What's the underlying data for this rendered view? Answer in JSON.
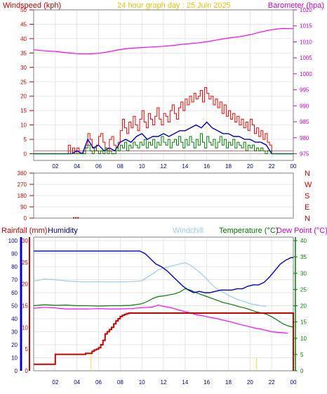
{
  "chart_data": [
    {
      "type": "line",
      "labels": {
        "windspeed": "Windspeed (kph)",
        "title": "24 hour graph day : 25 Juin 2025",
        "barometer": "Barometer (hpa)"
      },
      "colors": {
        "gust": "#ff0000",
        "avg": "#0000cc",
        "lull": "#008000",
        "baro": "#ff00ff",
        "frame": "#808080"
      },
      "x_ticks": [
        "02",
        "04",
        "06",
        "08",
        "10",
        "12",
        "14",
        "16",
        "18",
        "20",
        "22",
        "00"
      ],
      "x_range_hours": [
        0,
        24
      ],
      "wind_axis": {
        "range": [
          0,
          50
        ],
        "ticks": [
          "0",
          "5",
          "10",
          "15",
          "20",
          "25",
          "30",
          "35",
          "40",
          "45",
          "50"
        ]
      },
      "baro_axis": {
        "range": [
          975,
          1020
        ],
        "ticks": [
          "975",
          "980",
          "985",
          "990",
          "995",
          "1000",
          "1005",
          "1010",
          "1015",
          "1020"
        ]
      },
      "series": [
        {
          "key": "gust",
          "axis": "wind",
          "step": true,
          "x": [
            0,
            3.2,
            3.4,
            3.6,
            3.8,
            4.0,
            4.2,
            4.4,
            4.6,
            4.8,
            5.0,
            5.2,
            5.4,
            5.6,
            5.8,
            6.0,
            6.2,
            6.4,
            6.6,
            6.8,
            7.0,
            7.2,
            7.4,
            7.6,
            7.8,
            8.0,
            8.2,
            8.4,
            8.6,
            8.8,
            9.0,
            9.2,
            9.4,
            9.6,
            9.8,
            10.0,
            10.2,
            10.4,
            10.6,
            10.8,
            11.0,
            11.2,
            11.4,
            11.6,
            11.8,
            12.0,
            12.2,
            12.4,
            12.6,
            12.8,
            13.0,
            13.2,
            13.4,
            13.6,
            13.8,
            14.0,
            14.2,
            14.4,
            14.6,
            14.8,
            15.0,
            15.2,
            15.4,
            15.6,
            15.8,
            16.0,
            16.2,
            16.4,
            16.6,
            16.8,
            17.0,
            17.2,
            17.4,
            17.6,
            17.8,
            18.0,
            18.2,
            18.4,
            18.6,
            18.8,
            19.0,
            19.2,
            19.4,
            19.6,
            19.8,
            20.0,
            20.2,
            20.4,
            20.6,
            20.8,
            21.0,
            21.2,
            21.4,
            21.6,
            21.8,
            22.0,
            24.0
          ],
          "y": [
            0,
            3,
            0,
            2,
            0,
            2,
            0,
            0,
            1,
            3,
            7,
            5,
            2,
            1,
            3,
            6,
            7,
            4,
            2,
            1,
            5,
            6,
            3,
            2,
            4,
            8,
            12,
            9,
            7,
            11,
            9,
            13,
            10,
            8,
            12,
            15,
            11,
            9,
            14,
            12,
            10,
            13,
            16,
            12,
            10,
            14,
            13,
            11,
            15,
            17,
            14,
            12,
            16,
            18,
            15,
            19,
            17,
            20,
            18,
            21,
            19,
            20,
            22,
            18,
            23,
            21,
            19,
            20,
            17,
            19,
            16,
            18,
            14,
            17,
            13,
            15,
            12,
            14,
            11,
            13,
            10,
            12,
            9,
            11,
            8,
            12,
            10,
            7,
            9,
            6,
            8,
            5,
            7,
            4,
            3,
            0,
            0
          ]
        },
        {
          "key": "avg",
          "axis": "wind",
          "step": false,
          "x": [
            0,
            3.5,
            4.0,
            4.5,
            5.0,
            5.5,
            6.0,
            6.5,
            7.0,
            7.5,
            8.0,
            8.5,
            9.0,
            9.5,
            10.0,
            10.5,
            11.0,
            11.5,
            12.0,
            12.5,
            13.0,
            13.5,
            14.0,
            14.5,
            15.0,
            15.5,
            16.0,
            16.5,
            17.0,
            17.5,
            18.0,
            18.5,
            19.0,
            19.5,
            20.0,
            20.5,
            21.0,
            21.5,
            22.0,
            24.0
          ],
          "y": [
            0,
            0,
            1,
            0,
            5,
            2,
            3,
            1,
            2,
            1,
            4,
            5,
            4,
            6,
            7,
            5,
            6,
            6,
            7,
            6,
            7,
            8,
            8,
            9,
            10,
            9,
            11,
            9,
            8,
            7,
            7,
            6,
            6,
            5,
            5,
            4,
            4,
            3,
            0,
            0
          ]
        },
        {
          "key": "lull",
          "axis": "wind",
          "step": true,
          "x": [
            0,
            4.8,
            5.0,
            5.2,
            5.4,
            5.6,
            5.8,
            6.0,
            6.2,
            6.4,
            6.6,
            6.8,
            7.0,
            7.2,
            7.4,
            7.6,
            7.8,
            8.0,
            8.2,
            8.4,
            8.6,
            8.8,
            9.0,
            9.2,
            9.4,
            9.6,
            9.8,
            10.0,
            10.2,
            10.4,
            10.6,
            10.8,
            11.0,
            11.2,
            11.4,
            11.6,
            11.8,
            12.0,
            12.2,
            12.4,
            12.6,
            12.8,
            13.0,
            13.2,
            13.4,
            13.6,
            13.8,
            14.0,
            14.2,
            14.4,
            14.6,
            14.8,
            15.0,
            15.2,
            15.4,
            15.6,
            15.8,
            16.0,
            16.2,
            16.4,
            16.6,
            16.8,
            17.0,
            17.2,
            17.4,
            17.6,
            17.8,
            18.0,
            18.2,
            18.4,
            18.6,
            18.8,
            19.0,
            19.2,
            19.4,
            19.6,
            19.8,
            20.0,
            20.2,
            20.4,
            20.6,
            20.8,
            21.0,
            21.2,
            21.4,
            21.6,
            22.0,
            24.0
          ],
          "y": [
            0,
            2,
            3,
            1,
            0,
            2,
            1,
            0,
            1,
            0,
            2,
            0,
            1,
            0,
            0,
            2,
            1,
            3,
            2,
            4,
            1,
            3,
            2,
            4,
            3,
            2,
            4,
            3,
            5,
            2,
            4,
            3,
            5,
            2,
            4,
            3,
            6,
            4,
            3,
            5,
            2,
            4,
            5,
            3,
            6,
            4,
            2,
            5,
            3,
            6,
            4,
            2,
            5,
            3,
            7,
            4,
            2,
            6,
            4,
            3,
            5,
            2,
            4,
            6,
            3,
            5,
            2,
            4,
            3,
            5,
            2,
            4,
            3,
            2,
            4,
            1,
            3,
            2,
            3,
            1,
            2,
            1,
            2,
            1,
            0,
            1,
            0,
            0
          ]
        },
        {
          "key": "baro",
          "axis": "baro",
          "step": false,
          "x": [
            0,
            1.0,
            2.0,
            3.0,
            4.0,
            5.0,
            6.0,
            7.0,
            8.0,
            9.0,
            10.0,
            11.0,
            12.0,
            13.0,
            14.0,
            15.0,
            16.0,
            17.0,
            18.0,
            19.0,
            20.0,
            21.0,
            22.0,
            23.0,
            24.0
          ],
          "y": [
            1007.5,
            1007.2,
            1007.0,
            1006.6,
            1006.3,
            1006.2,
            1006.4,
            1006.9,
            1007.6,
            1008.0,
            1008.2,
            1008.4,
            1008.6,
            1008.9,
            1009.3,
            1009.6,
            1010.0,
            1010.6,
            1011.2,
            1011.6,
            1012.2,
            1013.1,
            1013.8,
            1014.2,
            1014.1
          ]
        }
      ]
    },
    {
      "type": "scatter",
      "y_ticks": [
        "360",
        "270",
        "180",
        "90",
        "0"
      ],
      "compass": [
        "N",
        "W",
        "S",
        "E",
        "N"
      ],
      "y_range": [
        0,
        360
      ],
      "points": {
        "x": [
          3.7,
          3.9,
          4.1
        ],
        "y": [
          2,
          2,
          2
        ]
      }
    },
    {
      "type": "line",
      "labels": {
        "rainfall": "Rainfall (mm)",
        "humidity": "Humidity",
        "windchill": "Windchill",
        "temperature": "Temperature (°C)",
        "dewpoint": "Dew Point (°C)"
      },
      "colors": {
        "rain": "#cc0000",
        "humidity": "#0000cc",
        "windchill": "#99ccee",
        "temperature": "#008000",
        "dewpoint": "#ff00ff",
        "rainrate": "#ffcc00"
      },
      "x_ticks": [
        "02",
        "04",
        "06",
        "08",
        "10",
        "12",
        "14",
        "16",
        "18",
        "20",
        "22",
        "00"
      ],
      "x_range_hours": [
        0,
        24
      ],
      "humidity_axis": {
        "range": [
          0,
          100
        ],
        "ticks": [
          "0",
          "10",
          "20",
          "30",
          "40",
          "50",
          "60",
          "70",
          "80",
          "90",
          "100"
        ]
      },
      "rain_axis": {
        "range": [
          0,
          30
        ],
        "ticks": [
          "0",
          "5",
          "10",
          "15",
          "20",
          "25",
          "30"
        ]
      },
      "temp_axis": {
        "range": [
          0,
          40
        ],
        "ticks": [
          "0",
          "5",
          "10",
          "15",
          "20",
          "25",
          "30",
          "35",
          "40"
        ]
      },
      "series": [
        {
          "key": "humidity",
          "axis": "humidity",
          "x": [
            0,
            1,
            2,
            3,
            4,
            5,
            6,
            7,
            8,
            9,
            9.8,
            10.3,
            10.8,
            11.3,
            11.8,
            12.3,
            12.8,
            13.3,
            13.8,
            14.3,
            14.8,
            15.3,
            15.8,
            16.3,
            16.8,
            17.3,
            17.8,
            18.3,
            18.8,
            19.3,
            19.8,
            20.3,
            20.8,
            21.3,
            21.8,
            22.3,
            22.8,
            23.3,
            23.8,
            24.0
          ],
          "y": [
            92,
            92,
            92,
            92,
            92,
            92,
            92,
            92,
            92,
            92,
            92,
            90,
            86,
            82,
            80,
            77,
            73,
            69,
            65,
            62,
            60,
            61,
            60,
            60,
            61,
            62,
            62,
            62,
            63,
            63,
            65,
            66,
            66,
            68,
            72,
            77,
            82,
            85,
            87,
            87
          ]
        },
        {
          "key": "windchill",
          "axis": "temp",
          "x": [
            0,
            1,
            2,
            3,
            4,
            5,
            6,
            7,
            8,
            9,
            10,
            10.5,
            11,
            11.5,
            12,
            12.5,
            13,
            13.5,
            14,
            14.5,
            15,
            15.5,
            16,
            16.5,
            17,
            17.5,
            18,
            18.5,
            19,
            19.5,
            20,
            20.5,
            21,
            21.5
          ],
          "y": [
            27.5,
            28.2,
            28.0,
            27.6,
            27.4,
            27.3,
            27.4,
            27.3,
            27.3,
            27.4,
            27.6,
            28.8,
            29.8,
            31.0,
            31.6,
            32.0,
            32.4,
            32.8,
            33.2,
            32.4,
            31.2,
            29.8,
            28.2,
            26.4,
            25.0,
            24.2,
            23.2,
            22.4,
            21.8,
            21.2,
            20.6,
            20.3,
            20.0,
            19.8
          ]
        },
        {
          "key": "temperature",
          "axis": "temp",
          "x": [
            0,
            1,
            2,
            3,
            4,
            5,
            6,
            7,
            8,
            9,
            10,
            10.5,
            11,
            11.5,
            12,
            12.5,
            13,
            13.5,
            14,
            14.5,
            15,
            15.5,
            16,
            16.5,
            17,
            17.5,
            18,
            18.5,
            19,
            19.5,
            20,
            20.5,
            21,
            21.5,
            22,
            22.5,
            23,
            23.5,
            24.0
          ],
          "y": [
            20.0,
            20.3,
            20.1,
            20.2,
            20.0,
            20.0,
            19.9,
            20.0,
            20.0,
            20.1,
            20.6,
            21.3,
            22.2,
            22.8,
            23.0,
            23.3,
            23.6,
            24.2,
            25.2,
            24.8,
            24.0,
            23.4,
            22.8,
            22.2,
            21.6,
            21.0,
            20.6,
            20.2,
            19.7,
            19.3,
            18.8,
            18.2,
            17.8,
            17.4,
            16.6,
            15.6,
            14.5,
            13.8,
            13.4
          ]
        },
        {
          "key": "dewpoint",
          "axis": "temp",
          "x": [
            0,
            1,
            2,
            3,
            4,
            5,
            6,
            7,
            8,
            9,
            10,
            11,
            11.5,
            12,
            12.5,
            13,
            13.5,
            14,
            14.5,
            15,
            15.5,
            16,
            16.5,
            17,
            17.5,
            18,
            18.5,
            19,
            19.5,
            20,
            20.5,
            21,
            21.5,
            22,
            22.5,
            23,
            23.5
          ],
          "y": [
            19.2,
            19.5,
            19.3,
            19.0,
            19.0,
            19.0,
            19.1,
            19.0,
            19.0,
            19.1,
            19.4,
            19.6,
            20.2,
            19.8,
            19.5,
            19.1,
            18.6,
            18.2,
            17.8,
            17.2,
            17.0,
            16.6,
            16.3,
            16.0,
            15.6,
            15.2,
            14.8,
            14.3,
            13.9,
            13.5,
            13.1,
            12.8,
            12.4,
            12.0,
            11.8,
            11.7,
            11.5
          ]
        },
        {
          "key": "rain",
          "axis": "rain",
          "step": true,
          "x": [
            0,
            1.0,
            2.0,
            4.8,
            5.4,
            5.6,
            5.8,
            6.0,
            6.2,
            6.4,
            6.6,
            6.8,
            7.0,
            7.2,
            7.4,
            7.6,
            7.8,
            8.0,
            8.2,
            8.4,
            8.6,
            8.8,
            23.95,
            24.0
          ],
          "y": [
            1.5,
            1.5,
            3.8,
            4.0,
            4.5,
            4.8,
            5.0,
            5.3,
            6.0,
            7.0,
            8.5,
            9.0,
            9.5,
            10.0,
            10.8,
            11.5,
            12.0,
            12.5,
            12.8,
            13.0,
            13.2,
            13.3,
            13.3,
            0
          ]
        }
      ],
      "rain_rate_marks": {
        "x": [
          5.3,
          20.6
        ],
        "y": [
          4.0,
          3.0
        ]
      }
    }
  ]
}
